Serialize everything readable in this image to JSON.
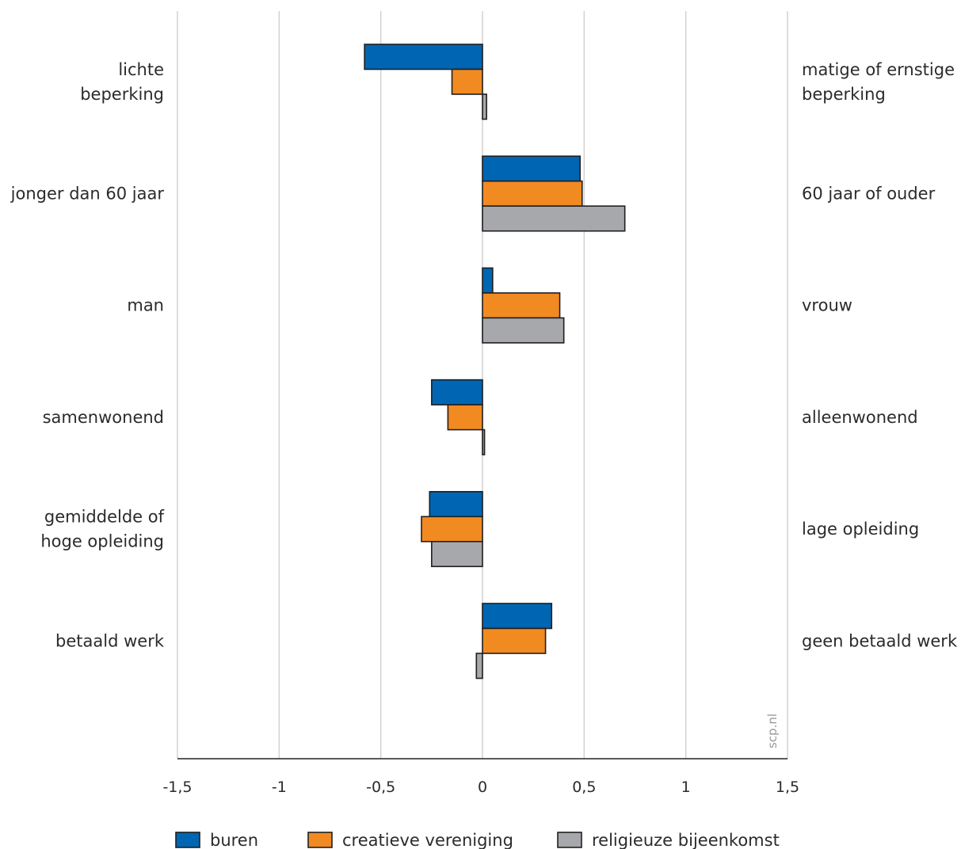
{
  "chart_data": {
    "type": "bar",
    "orientation": "horizontal",
    "categories_left": [
      [
        "lichte ",
        "beperking"
      ],
      [
        "jonger dan 60 jaar"
      ],
      [
        "man"
      ],
      [
        "samenwonend"
      ],
      [
        "gemiddelde of",
        "hoge opleiding"
      ],
      [
        "betaald werk"
      ]
    ],
    "categories_right": [
      [
        "matige of ernstige",
        "beperking"
      ],
      [
        "60 jaar of ouder"
      ],
      [
        "vrouw"
      ],
      [
        "alleenwonend"
      ],
      [
        "lage opleiding"
      ],
      [
        "geen betaald werk"
      ]
    ],
    "series": [
      {
        "name": "buren",
        "color": "#0066b3",
        "values": [
          -0.58,
          0.48,
          0.05,
          -0.25,
          -0.26,
          0.34
        ]
      },
      {
        "name": "creatieve vereniging",
        "color": "#f28a22",
        "values": [
          -0.15,
          0.49,
          0.38,
          -0.17,
          -0.3,
          0.31
        ]
      },
      {
        "name": "religieuze bijeenkomst",
        "color": "#a7a8ab",
        "values": [
          0.02,
          0.7,
          0.4,
          0.01,
          -0.25,
          -0.03
        ]
      }
    ],
    "xlim": [
      -1.5,
      1.5
    ],
    "xticks": [
      -1.5,
      -1,
      -0.5,
      0,
      0.5,
      1,
      1.5
    ],
    "xtick_labels": [
      "-1,5",
      "-1",
      "-0,5",
      "0",
      "0,5",
      "1",
      "1,5"
    ],
    "grid": true,
    "legend_position": "bottom",
    "watermark": "scp.nl"
  }
}
